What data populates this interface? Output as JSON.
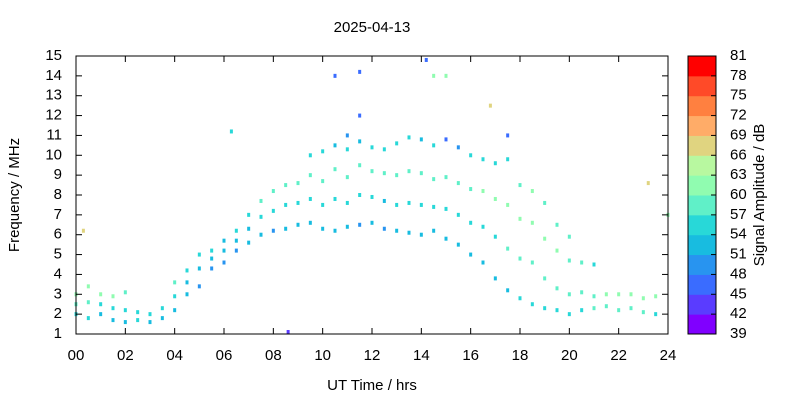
{
  "chart_data": {
    "type": "scatter",
    "title": "2025-04-13",
    "x_label": "UT Time / hrs",
    "y_label": "Frequency / MHz",
    "colorbar_label": "Signal Amplitude / dB",
    "xlim": [
      0,
      24
    ],
    "ylim": [
      1,
      15
    ],
    "xticks": [
      {
        "value": 0,
        "label": "00"
      },
      {
        "value": 2,
        "label": "02"
      },
      {
        "value": 4,
        "label": "04"
      },
      {
        "value": 6,
        "label": "06"
      },
      {
        "value": 8,
        "label": "08"
      },
      10,
      12,
      14,
      16,
      18,
      20,
      22,
      24
    ],
    "yticks": [
      1,
      2,
      3,
      4,
      5,
      6,
      7,
      8,
      9,
      10,
      11,
      12,
      13,
      14,
      15
    ],
    "clim": [
      39,
      81
    ],
    "cticks": [
      39,
      42,
      45,
      48,
      51,
      54,
      57,
      60,
      63,
      66,
      69,
      72,
      75,
      78,
      81
    ],
    "colorscale": [
      "#8000ff",
      "#5a3cff",
      "#3a6cff",
      "#2894f0",
      "#18bce0",
      "#28d8d8",
      "#60f0c8",
      "#90fcb0",
      "#b8f8a0",
      "#e0d480",
      "#ffac68",
      "#ff8040",
      "#ff4a28",
      "#ff0000"
    ],
    "points": [
      {
        "x": 0,
        "y": 2,
        "value": 55
      },
      {
        "x": 0,
        "y": 2.5,
        "value": 57
      },
      {
        "x": 0,
        "y": 3,
        "value": 60
      },
      {
        "x": 0.5,
        "y": 1.8,
        "value": 54
      },
      {
        "x": 0.5,
        "y": 2.6,
        "value": 58
      },
      {
        "x": 0.5,
        "y": 3.4,
        "value": 62
      },
      {
        "x": 1,
        "y": 2,
        "value": 52
      },
      {
        "x": 1,
        "y": 2.5,
        "value": 56
      },
      {
        "x": 1,
        "y": 3,
        "value": 60
      },
      {
        "x": 1.5,
        "y": 1.7,
        "value": 53
      },
      {
        "x": 1.5,
        "y": 2.3,
        "value": 55
      },
      {
        "x": 1.5,
        "y": 2.9,
        "value": 61
      },
      {
        "x": 2,
        "y": 1.6,
        "value": 52
      },
      {
        "x": 2,
        "y": 2.2,
        "value": 55
      },
      {
        "x": 2,
        "y": 3.1,
        "value": 58
      },
      {
        "x": 2.5,
        "y": 1.7,
        "value": 54
      },
      {
        "x": 2.5,
        "y": 2.1,
        "value": 56
      },
      {
        "x": 3,
        "y": 1.6,
        "value": 53
      },
      {
        "x": 3,
        "y": 2,
        "value": 55
      },
      {
        "x": 3.5,
        "y": 1.8,
        "value": 51
      },
      {
        "x": 3.5,
        "y": 2.3,
        "value": 54
      },
      {
        "x": 4,
        "y": 2.2,
        "value": 52
      },
      {
        "x": 4,
        "y": 2.9,
        "value": 55
      },
      {
        "x": 4,
        "y": 3.6,
        "value": 57
      },
      {
        "x": 4.5,
        "y": 3,
        "value": 51
      },
      {
        "x": 4.5,
        "y": 3.6,
        "value": 53
      },
      {
        "x": 4.5,
        "y": 4.2,
        "value": 55
      },
      {
        "x": 5,
        "y": 3.4,
        "value": 50
      },
      {
        "x": 5,
        "y": 4.3,
        "value": 52
      },
      {
        "x": 5,
        "y": 5,
        "value": 54
      },
      {
        "x": 5.5,
        "y": 4.3,
        "value": 50
      },
      {
        "x": 5.5,
        "y": 4.8,
        "value": 52
      },
      {
        "x": 5.5,
        "y": 5.2,
        "value": 54
      },
      {
        "x": 6,
        "y": 4.6,
        "value": 50
      },
      {
        "x": 6,
        "y": 5.2,
        "value": 52
      },
      {
        "x": 6,
        "y": 5.7,
        "value": 53
      },
      {
        "x": 6.5,
        "y": 5.2,
        "value": 50
      },
      {
        "x": 6.5,
        "y": 5.7,
        "value": 52
      },
      {
        "x": 6.5,
        "y": 6.2,
        "value": 55
      },
      {
        "x": 7,
        "y": 5.6,
        "value": 51
      },
      {
        "x": 7,
        "y": 6.3,
        "value": 53
      },
      {
        "x": 7,
        "y": 7,
        "value": 56
      },
      {
        "x": 7.5,
        "y": 6,
        "value": 51
      },
      {
        "x": 7.5,
        "y": 6.9,
        "value": 54
      },
      {
        "x": 7.5,
        "y": 7.7,
        "value": 57
      },
      {
        "x": 8,
        "y": 6.2,
        "value": 50
      },
      {
        "x": 8,
        "y": 7.2,
        "value": 54
      },
      {
        "x": 8,
        "y": 8.2,
        "value": 58
      },
      {
        "x": 8.5,
        "y": 6.3,
        "value": 51
      },
      {
        "x": 8.5,
        "y": 7.5,
        "value": 55
      },
      {
        "x": 8.5,
        "y": 8.5,
        "value": 58
      },
      {
        "x": 9,
        "y": 6.5,
        "value": 51
      },
      {
        "x": 9,
        "y": 7.6,
        "value": 54
      },
      {
        "x": 9,
        "y": 8.6,
        "value": 58
      },
      {
        "x": 9.5,
        "y": 6.6,
        "value": 52
      },
      {
        "x": 9.5,
        "y": 7.8,
        "value": 55
      },
      {
        "x": 9.5,
        "y": 9,
        "value": 59
      },
      {
        "x": 9.5,
        "y": 10,
        "value": 56
      },
      {
        "x": 10,
        "y": 6.3,
        "value": 51
      },
      {
        "x": 10,
        "y": 7.5,
        "value": 54
      },
      {
        "x": 10,
        "y": 8.7,
        "value": 58
      },
      {
        "x": 10,
        "y": 10.2,
        "value": 55
      },
      {
        "x": 10.5,
        "y": 6.2,
        "value": 51
      },
      {
        "x": 10.5,
        "y": 7.8,
        "value": 55
      },
      {
        "x": 10.5,
        "y": 9.3,
        "value": 58
      },
      {
        "x": 10.5,
        "y": 10.5,
        "value": 53
      },
      {
        "x": 11,
        "y": 6.4,
        "value": 51
      },
      {
        "x": 11,
        "y": 7.6,
        "value": 54
      },
      {
        "x": 11,
        "y": 8.9,
        "value": 57
      },
      {
        "x": 11,
        "y": 10.3,
        "value": 55
      },
      {
        "x": 11,
        "y": 11,
        "value": 50
      },
      {
        "x": 11.5,
        "y": 6.5,
        "value": 50
      },
      {
        "x": 11.5,
        "y": 8,
        "value": 54
      },
      {
        "x": 11.5,
        "y": 9.5,
        "value": 57
      },
      {
        "x": 11.5,
        "y": 10.7,
        "value": 53
      },
      {
        "x": 11.5,
        "y": 12,
        "value": 45
      },
      {
        "x": 12,
        "y": 6.6,
        "value": 51
      },
      {
        "x": 12,
        "y": 7.9,
        "value": 54
      },
      {
        "x": 12,
        "y": 9.2,
        "value": 57
      },
      {
        "x": 12,
        "y": 10.4,
        "value": 54
      },
      {
        "x": 12.5,
        "y": 6.3,
        "value": 50
      },
      {
        "x": 12.5,
        "y": 7.7,
        "value": 53
      },
      {
        "x": 12.5,
        "y": 9.1,
        "value": 57
      },
      {
        "x": 12.5,
        "y": 10.3,
        "value": 55
      },
      {
        "x": 13,
        "y": 6.2,
        "value": 51
      },
      {
        "x": 13,
        "y": 7.5,
        "value": 54
      },
      {
        "x": 13,
        "y": 9,
        "value": 57
      },
      {
        "x": 13,
        "y": 10.6,
        "value": 55
      },
      {
        "x": 13.5,
        "y": 6.1,
        "value": 52
      },
      {
        "x": 13.5,
        "y": 7.6,
        "value": 55
      },
      {
        "x": 13.5,
        "y": 9.2,
        "value": 58
      },
      {
        "x": 13.5,
        "y": 10.9,
        "value": 54
      },
      {
        "x": 14,
        "y": 6,
        "value": 51
      },
      {
        "x": 14,
        "y": 7.5,
        "value": 55
      },
      {
        "x": 14,
        "y": 9.1,
        "value": 58
      },
      {
        "x": 14,
        "y": 10.8,
        "value": 53
      },
      {
        "x": 14.5,
        "y": 6.2,
        "value": 52
      },
      {
        "x": 14.5,
        "y": 7.4,
        "value": 55
      },
      {
        "x": 14.5,
        "y": 8.8,
        "value": 58
      },
      {
        "x": 14.5,
        "y": 10.5,
        "value": 54
      },
      {
        "x": 15,
        "y": 5.8,
        "value": 51
      },
      {
        "x": 15,
        "y": 7.3,
        "value": 54
      },
      {
        "x": 15,
        "y": 8.9,
        "value": 58
      },
      {
        "x": 15,
        "y": 10.8,
        "value": 46
      },
      {
        "x": 15.5,
        "y": 5.5,
        "value": 51
      },
      {
        "x": 15.5,
        "y": 7,
        "value": 54
      },
      {
        "x": 15.5,
        "y": 8.6,
        "value": 58
      },
      {
        "x": 15.5,
        "y": 10.4,
        "value": 50
      },
      {
        "x": 16,
        "y": 5,
        "value": 51
      },
      {
        "x": 16,
        "y": 6.6,
        "value": 55
      },
      {
        "x": 16,
        "y": 8.3,
        "value": 59
      },
      {
        "x": 16,
        "y": 10,
        "value": 54
      },
      {
        "x": 16.5,
        "y": 4.6,
        "value": 52
      },
      {
        "x": 16.5,
        "y": 6.4,
        "value": 56
      },
      {
        "x": 16.5,
        "y": 8.2,
        "value": 60
      },
      {
        "x": 16.5,
        "y": 9.8,
        "value": 55
      },
      {
        "x": 17,
        "y": 3.8,
        "value": 53
      },
      {
        "x": 17,
        "y": 5.9,
        "value": 56
      },
      {
        "x": 17,
        "y": 7.8,
        "value": 60
      },
      {
        "x": 17,
        "y": 9.6,
        "value": 55
      },
      {
        "x": 17.5,
        "y": 3.2,
        "value": 53
      },
      {
        "x": 17.5,
        "y": 5.3,
        "value": 57
      },
      {
        "x": 17.5,
        "y": 7.5,
        "value": 61
      },
      {
        "x": 17.5,
        "y": 9.8,
        "value": 56
      },
      {
        "x": 17.5,
        "y": 11,
        "value": 46
      },
      {
        "x": 18,
        "y": 2.8,
        "value": 54
      },
      {
        "x": 18,
        "y": 4.8,
        "value": 57
      },
      {
        "x": 18,
        "y": 6.8,
        "value": 61
      },
      {
        "x": 18,
        "y": 8.5,
        "value": 58
      },
      {
        "x": 18.5,
        "y": 2.5,
        "value": 55
      },
      {
        "x": 18.5,
        "y": 4.6,
        "value": 58
      },
      {
        "x": 18.5,
        "y": 6.6,
        "value": 62
      },
      {
        "x": 18.5,
        "y": 8.2,
        "value": 60
      },
      {
        "x": 19,
        "y": 2.3,
        "value": 55
      },
      {
        "x": 19,
        "y": 3.8,
        "value": 58
      },
      {
        "x": 19,
        "y": 5.8,
        "value": 61
      },
      {
        "x": 19,
        "y": 7.6,
        "value": 59
      },
      {
        "x": 19.5,
        "y": 2.2,
        "value": 56
      },
      {
        "x": 19.5,
        "y": 3.3,
        "value": 58
      },
      {
        "x": 19.5,
        "y": 5.2,
        "value": 60
      },
      {
        "x": 19.5,
        "y": 6.5,
        "value": 58
      },
      {
        "x": 20,
        "y": 2,
        "value": 55
      },
      {
        "x": 20,
        "y": 3,
        "value": 57
      },
      {
        "x": 20,
        "y": 4.7,
        "value": 59
      },
      {
        "x": 20,
        "y": 5.9,
        "value": 57
      },
      {
        "x": 20.5,
        "y": 2.2,
        "value": 56
      },
      {
        "x": 20.5,
        "y": 3.1,
        "value": 58
      },
      {
        "x": 20.5,
        "y": 4.6,
        "value": 57
      },
      {
        "x": 21,
        "y": 2.3,
        "value": 57
      },
      {
        "x": 21,
        "y": 2.9,
        "value": 59
      },
      {
        "x": 21,
        "y": 4.5,
        "value": 56
      },
      {
        "x": 21.5,
        "y": 2.4,
        "value": 57
      },
      {
        "x": 21.5,
        "y": 3,
        "value": 60
      },
      {
        "x": 22,
        "y": 2.2,
        "value": 58
      },
      {
        "x": 22,
        "y": 3,
        "value": 61
      },
      {
        "x": 22.5,
        "y": 2.3,
        "value": 58
      },
      {
        "x": 22.5,
        "y": 3,
        "value": 61
      },
      {
        "x": 23,
        "y": 2.1,
        "value": 57
      },
      {
        "x": 23,
        "y": 2.8,
        "value": 60
      },
      {
        "x": 23.5,
        "y": 2,
        "value": 56
      },
      {
        "x": 23.5,
        "y": 2.9,
        "value": 60
      },
      {
        "x": 8.6,
        "y": 1.1,
        "value": 43
      },
      {
        "x": 10.5,
        "y": 14,
        "value": 45
      },
      {
        "x": 11.5,
        "y": 14.2,
        "value": 45
      },
      {
        "x": 14.2,
        "y": 14.8,
        "value": 47
      },
      {
        "x": 14.5,
        "y": 14,
        "value": 60
      },
      {
        "x": 15,
        "y": 14,
        "value": 60
      },
      {
        "x": 6.3,
        "y": 11.2,
        "value": 55
      },
      {
        "x": 0.3,
        "y": 6.2,
        "value": 68
      },
      {
        "x": 16.8,
        "y": 12.5,
        "value": 68
      },
      {
        "x": 23.2,
        "y": 8.6,
        "value": 68
      },
      {
        "x": 24,
        "y": 7,
        "value": 60
      }
    ]
  }
}
